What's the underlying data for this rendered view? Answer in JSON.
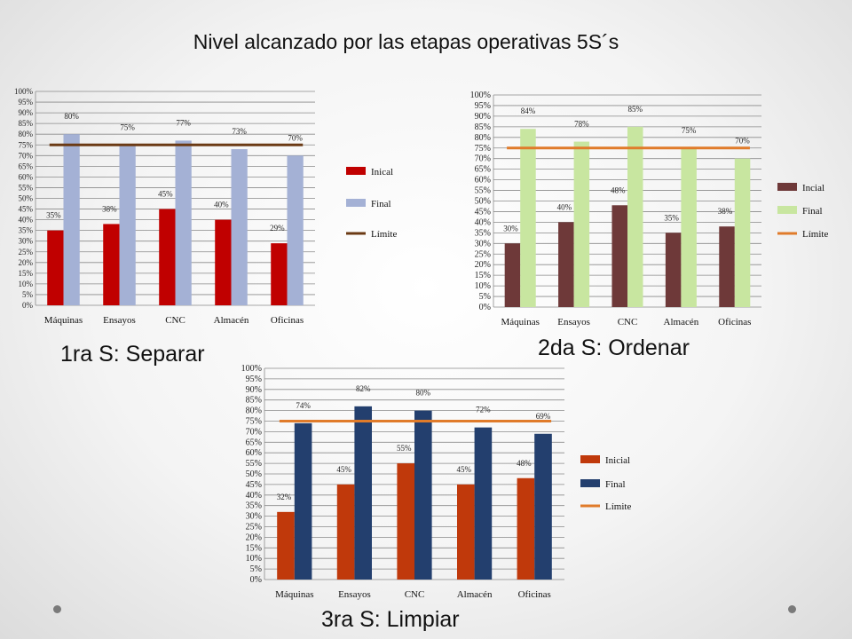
{
  "slide": {
    "title": "Nivel alcanzado por las etapas operativas 5S´s",
    "captions": [
      "1ra S: Separar",
      "2da S: Ordenar",
      "3ra S: Limpiar"
    ]
  },
  "chart_data": [
    {
      "type": "bar",
      "categories": [
        "Máquinas",
        "Ensayos",
        "CNC",
        "Almacén",
        "Oficinas"
      ],
      "series": [
        {
          "name": "Inical",
          "values": [
            35,
            38,
            45,
            40,
            29
          ],
          "labels": [
            "35%",
            "38%",
            "45%",
            "40%",
            "29%"
          ],
          "color": "#c00000"
        },
        {
          "name": "Final",
          "values": [
            80,
            75,
            77,
            73,
            70
          ],
          "labels": [
            "80%",
            "75%",
            "77%",
            "73%",
            "70%"
          ],
          "color": "#a4b1d5"
        }
      ],
      "limit": {
        "name": "Límite",
        "value": 75,
        "color": "#6b3a14"
      },
      "ylim": [
        0,
        100
      ],
      "ytick_step": 5,
      "grid": true,
      "legend": "right"
    },
    {
      "type": "bar",
      "categories": [
        "Máquinas",
        "Ensayos",
        "CNC",
        "Almacén",
        "Oficinas"
      ],
      "series": [
        {
          "name": "Incial",
          "values": [
            30,
            40,
            48,
            35,
            38
          ],
          "labels": [
            "30%",
            "40%",
            "48%",
            "35%",
            "38%"
          ],
          "color": "#6e3939"
        },
        {
          "name": "Final",
          "values": [
            84,
            78,
            85,
            75,
            70
          ],
          "labels": [
            "84%",
            "78%",
            "85%",
            "75%",
            "70%"
          ],
          "color": "#c8e6a0"
        }
      ],
      "limit": {
        "name": "Límite",
        "value": 75,
        "color": "#e07b2a"
      },
      "ylim": [
        0,
        100
      ],
      "ytick_step": 5,
      "grid": true,
      "legend": "right"
    },
    {
      "type": "bar",
      "categories": [
        "Máquinas",
        "Ensayos",
        "CNC",
        "Almacén",
        "Oficinas"
      ],
      "series": [
        {
          "name": "Inicial",
          "values": [
            32,
            45,
            55,
            45,
            48
          ],
          "labels": [
            "32%",
            "45%",
            "55%",
            "45%",
            "48%"
          ],
          "color": "#c0390b"
        },
        {
          "name": "Final",
          "values": [
            74,
            82,
            80,
            72,
            69
          ],
          "labels": [
            "74%",
            "82%",
            "80%",
            "72%",
            "69%"
          ],
          "color": "#233f6e"
        }
      ],
      "limit": {
        "name": "Límite",
        "value": 75,
        "color": "#e07b2a"
      },
      "ylim": [
        0,
        100
      ],
      "ytick_step": 5,
      "grid": true,
      "legend": "right"
    }
  ]
}
